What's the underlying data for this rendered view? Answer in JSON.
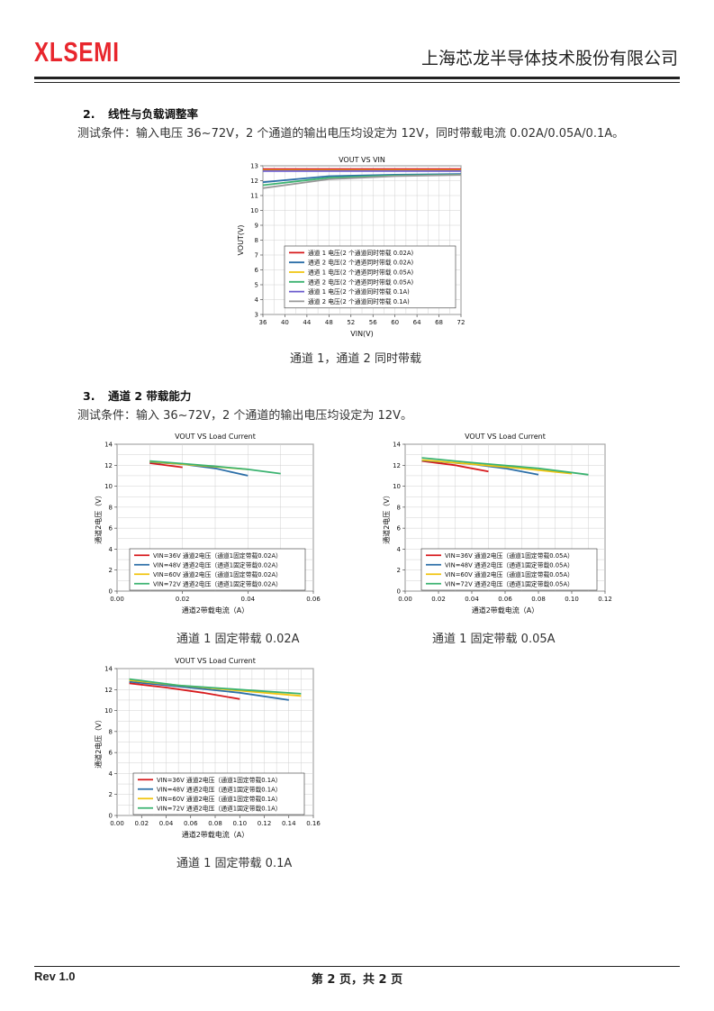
{
  "header": {
    "logo_text": "XLSEMI",
    "company": "上海芯龙半导体技术股份有限公司",
    "logo_color": "#e8262d"
  },
  "section2": {
    "number": "2.",
    "title": "线性与负载调整率",
    "condition": "测试条件：输入电压 36~72V，2 个通道的输出电压均设定为 12V，同时带载电流 0.02A/0.05A/0.1A。",
    "caption": "通道 1，通道 2 同时带载"
  },
  "section3": {
    "number": "3.",
    "title": "通道 2 带载能力",
    "condition": "测试条件：输入 36~72V，2 个通道的输出电压均设定为 12V。",
    "captions": [
      "通道 1 固定带载 0.02A",
      "通道 1 固定带载 0.05A",
      "通道 1 固定带载 0.1A"
    ]
  },
  "footer": {
    "rev": "Rev 1.0",
    "page": "第 2 页，共 2 页"
  },
  "chart_data": [
    {
      "type": "line",
      "title": "VOUT VS VIN",
      "xlabel": "VIN(V)",
      "ylabel": "VOUT(V)",
      "xlim": [
        36,
        72
      ],
      "ylim": [
        3,
        13
      ],
      "xticks": [
        36,
        40,
        44,
        48,
        52,
        56,
        60,
        64,
        68,
        72
      ],
      "yticks": [
        3,
        4,
        5,
        6,
        7,
        8,
        9,
        10,
        11,
        12,
        13
      ],
      "grid": true,
      "legend": "bottom-right",
      "series": [
        {
          "name": "通道 1 电压(2 个通道同时带载 0.02A)",
          "color": "#d7191c",
          "x": [
            36,
            48,
            60,
            72
          ],
          "y": [
            12.78,
            12.78,
            12.78,
            12.78
          ]
        },
        {
          "name": "通道 2 电压(2 个通道同时带载 0.02A)",
          "color": "#2c6fa8",
          "x": [
            36,
            48,
            60,
            72
          ],
          "y": [
            11.9,
            12.3,
            12.4,
            12.45
          ]
        },
        {
          "name": "通道 1 电压(2 个通道同时带载 0.05A)",
          "color": "#f1c40f",
          "x": [
            36,
            48,
            60,
            72
          ],
          "y": [
            12.7,
            12.7,
            12.7,
            12.7
          ]
        },
        {
          "name": "通道 2 电压(2 个通道同时带载 0.05A)",
          "color": "#3cb371",
          "x": [
            36,
            48,
            60,
            72
          ],
          "y": [
            11.7,
            12.2,
            12.35,
            12.4
          ]
        },
        {
          "name": "通道 1 电压(2 个通道同时带载 0.1A)",
          "color": "#6a5acd",
          "x": [
            36,
            48,
            60,
            72
          ],
          "y": [
            12.65,
            12.65,
            12.65,
            12.65
          ]
        },
        {
          "name": "通道 2 电压(2 个通道同时带载 0.1A)",
          "color": "#999999",
          "x": [
            36,
            48,
            60,
            72
          ],
          "y": [
            11.5,
            12.1,
            12.3,
            12.38
          ]
        }
      ]
    },
    {
      "type": "line",
      "title": "VOUT VS Load Current",
      "xlabel": "通道2带载电流（A）",
      "ylabel": "通道2电压（V）",
      "xlim": [
        0,
        0.06
      ],
      "ylim": [
        0,
        14
      ],
      "xticks": [
        0.0,
        0.02,
        0.04,
        0.06
      ],
      "yticks": [
        0,
        2,
        4,
        6,
        8,
        10,
        12,
        14
      ],
      "grid": true,
      "legend": "bottom-left",
      "series": [
        {
          "name": "VIN=36V 通道2电压（通道1固定带载0.02A）",
          "color": "#d7191c",
          "x": [
            0.01,
            0.02
          ],
          "y": [
            12.2,
            11.8
          ]
        },
        {
          "name": "VIN=48V 通道2电压（通道1固定带载0.02A）",
          "color": "#2c6fa8",
          "x": [
            0.01,
            0.02,
            0.03,
            0.04
          ],
          "y": [
            12.3,
            12.1,
            11.7,
            11.0
          ]
        },
        {
          "name": "VIN=60V 通道2电压（通道1固定带载0.02A）",
          "color": "#f1c40f",
          "x": [
            0.01,
            0.02,
            0.03,
            0.04
          ],
          "y": [
            12.35,
            12.1,
            11.85,
            11.6
          ]
        },
        {
          "name": "VIN=72V 通道2电压（通道1固定带载0.02A）",
          "color": "#3cb371",
          "x": [
            0.01,
            0.02,
            0.03,
            0.04,
            0.05
          ],
          "y": [
            12.4,
            12.15,
            11.9,
            11.6,
            11.2
          ]
        }
      ]
    },
    {
      "type": "line",
      "title": "VOUT VS Load Current",
      "xlabel": "通道2带载电流（A）",
      "ylabel": "通道2电压（V）",
      "xlim": [
        0,
        0.12
      ],
      "ylim": [
        0,
        14
      ],
      "xticks": [
        0.0,
        0.02,
        0.04,
        0.06,
        0.08,
        0.1,
        0.12
      ],
      "yticks": [
        0,
        2,
        4,
        6,
        8,
        10,
        12,
        14
      ],
      "grid": true,
      "legend": "bottom-left",
      "series": [
        {
          "name": "VIN=36V 通道2电压（通道1固定带载0.05A）",
          "color": "#d7191c",
          "x": [
            0.01,
            0.03,
            0.05
          ],
          "y": [
            12.4,
            12.0,
            11.4
          ]
        },
        {
          "name": "VIN=48V 通道2电压（通道1固定带载0.05A）",
          "color": "#2c6fa8",
          "x": [
            0.01,
            0.04,
            0.06,
            0.08
          ],
          "y": [
            12.45,
            12.1,
            11.7,
            11.1
          ]
        },
        {
          "name": "VIN=60V 通道2电压（通道1固定带载0.05A）",
          "color": "#f1c40f",
          "x": [
            0.01,
            0.04,
            0.07,
            0.1
          ],
          "y": [
            12.5,
            12.1,
            11.7,
            11.2
          ]
        },
        {
          "name": "VIN=72V 通道2电压（通道1固定带载0.05A）",
          "color": "#3cb371",
          "x": [
            0.01,
            0.04,
            0.08,
            0.11
          ],
          "y": [
            12.7,
            12.25,
            11.7,
            11.1
          ]
        }
      ]
    },
    {
      "type": "line",
      "title": "VOUT VS Load Current",
      "xlabel": "通道2带载电流（A）",
      "ylabel": "通道2电压（V）",
      "xlim": [
        0,
        0.16
      ],
      "ylim": [
        0,
        14
      ],
      "xticks": [
        0.0,
        0.02,
        0.04,
        0.06,
        0.08,
        0.1,
        0.12,
        0.14,
        0.16
      ],
      "yticks": [
        0,
        2,
        4,
        6,
        8,
        10,
        12,
        14
      ],
      "grid": true,
      "legend": "bottom-left",
      "series": [
        {
          "name": "VIN=36V 通道2电压（通道1固定带载0.1A）",
          "color": "#d7191c",
          "x": [
            0.01,
            0.04,
            0.07,
            0.1
          ],
          "y": [
            12.6,
            12.2,
            11.7,
            11.1
          ]
        },
        {
          "name": "VIN=48V 通道2电压（通道1固定带载0.1A）",
          "color": "#2c6fa8",
          "x": [
            0.01,
            0.05,
            0.1,
            0.14
          ],
          "y": [
            12.75,
            12.3,
            11.7,
            11.0
          ]
        },
        {
          "name": "VIN=60V 通道2电压（通道1固定带载0.1A）",
          "color": "#f1c40f",
          "x": [
            0.01,
            0.05,
            0.1,
            0.15
          ],
          "y": [
            12.9,
            12.4,
            11.9,
            11.4
          ]
        },
        {
          "name": "VIN=72V 通道2电压（通道1固定带载0.1A）",
          "color": "#3cb371",
          "x": [
            0.01,
            0.05,
            0.1,
            0.15
          ],
          "y": [
            13.0,
            12.4,
            12.0,
            11.6
          ]
        }
      ]
    }
  ]
}
